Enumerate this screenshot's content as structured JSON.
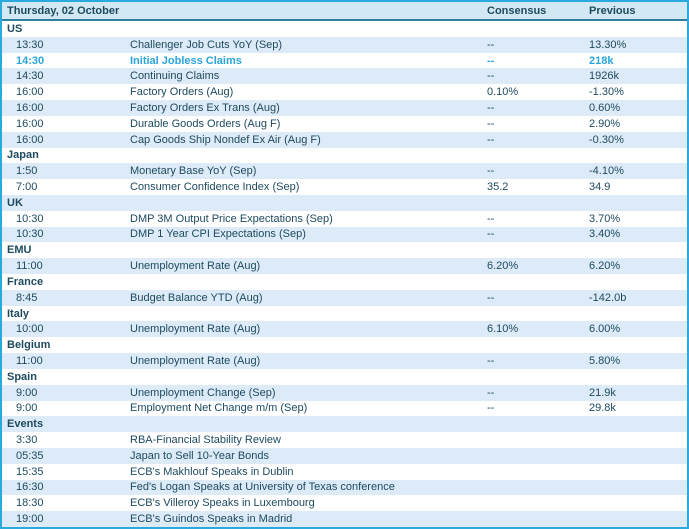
{
  "table": {
    "date_header": "Thursday, 02 October",
    "columns": {
      "consensus": "Consensus",
      "previous": "Previous"
    },
    "colors": {
      "accent": "#2AA9DF",
      "header_bg": "#D2E9F3",
      "stripe_bg": "#DCEBF7",
      "text": "#1E4A5F",
      "highlight": "#2AA5DB",
      "header_border": "#2E7E9E",
      "row_bg": "#FFFFFF"
    },
    "rows": [
      {
        "type": "section",
        "label": "US"
      },
      {
        "type": "data",
        "time": "13:30",
        "event": "Challenger Job Cuts YoY (Sep)",
        "consensus": "--",
        "previous": "13.30%"
      },
      {
        "type": "data",
        "time": "14:30",
        "event": "Initial Jobless Claims",
        "consensus": "--",
        "previous": "218k",
        "highlight": true
      },
      {
        "type": "data",
        "time": "14:30",
        "event": "Continuing Claims",
        "consensus": "--",
        "previous": "1926k"
      },
      {
        "type": "data",
        "time": "16:00",
        "event": "Factory Orders (Aug)",
        "consensus": "0.10%",
        "previous": "-1.30%"
      },
      {
        "type": "data",
        "time": "16:00",
        "event": "Factory Orders Ex Trans (Aug)",
        "consensus": "--",
        "previous": "0.60%"
      },
      {
        "type": "data",
        "time": "16:00",
        "event": "Durable Goods Orders (Aug F)",
        "consensus": "--",
        "previous": "2.90%"
      },
      {
        "type": "data",
        "time": "16:00",
        "event": "Cap Goods Ship Nondef Ex Air (Aug F)",
        "consensus": "--",
        "previous": "-0.30%"
      },
      {
        "type": "section",
        "label": "Japan"
      },
      {
        "type": "data",
        "time": "1:50",
        "event": "Monetary Base YoY (Sep)",
        "consensus": "--",
        "previous": "-4.10%"
      },
      {
        "type": "data",
        "time": "7:00",
        "event": "Consumer Confidence Index (Sep)",
        "consensus": "35.2",
        "previous": "34.9"
      },
      {
        "type": "section",
        "label": "UK"
      },
      {
        "type": "data",
        "time": "10:30",
        "event": "DMP 3M Output Price Expectations (Sep)",
        "consensus": "--",
        "previous": "3.70%"
      },
      {
        "type": "data",
        "time": "10:30",
        "event": "DMP 1 Year CPI Expectations (Sep)",
        "consensus": "--",
        "previous": "3.40%"
      },
      {
        "type": "section",
        "label": "EMU"
      },
      {
        "type": "data",
        "time": "11:00",
        "event": "Unemployment Rate (Aug)",
        "consensus": "6.20%",
        "previous": "6.20%"
      },
      {
        "type": "section",
        "label": "France"
      },
      {
        "type": "data",
        "time": "8:45",
        "event": "Budget Balance YTD (Aug)",
        "consensus": "--",
        "previous": "-142.0b"
      },
      {
        "type": "section",
        "label": "Italy"
      },
      {
        "type": "data",
        "time": "10:00",
        "event": "Unemployment Rate (Aug)",
        "consensus": "6.10%",
        "previous": "6.00%"
      },
      {
        "type": "section",
        "label": "Belgium"
      },
      {
        "type": "data",
        "time": "11:00",
        "event": "Unemployment Rate (Aug)",
        "consensus": "--",
        "previous": "5.80%"
      },
      {
        "type": "section",
        "label": "Spain"
      },
      {
        "type": "data",
        "time": "9:00",
        "event": "Unemployment Change (Sep)",
        "consensus": "--",
        "previous": "21.9k"
      },
      {
        "type": "data",
        "time": "9:00",
        "event": "Employment Net Change m/m (Sep)",
        "consensus": "--",
        "previous": "29.8k"
      },
      {
        "type": "section",
        "label": "Events"
      },
      {
        "type": "data",
        "time": "3:30",
        "event": "RBA-Financial Stability Review",
        "consensus": "",
        "previous": ""
      },
      {
        "type": "data",
        "time": "05:35",
        "event": "Japan to Sell 10-Year Bonds",
        "consensus": "",
        "previous": ""
      },
      {
        "type": "data",
        "time": "15:35",
        "event": "ECB's Makhlouf Speaks in Dublin",
        "consensus": "",
        "previous": ""
      },
      {
        "type": "data",
        "time": "16:30",
        "event": "Fed's Logan Speaks at University of Texas conference",
        "consensus": "",
        "previous": ""
      },
      {
        "type": "data",
        "time": "18:30",
        "event": "ECB's Villeroy Speaks in Luxembourg",
        "consensus": "",
        "previous": ""
      },
      {
        "type": "data",
        "time": "19:00",
        "event": "ECB's Guindos Speaks in Madrid",
        "consensus": "",
        "previous": ""
      }
    ]
  }
}
